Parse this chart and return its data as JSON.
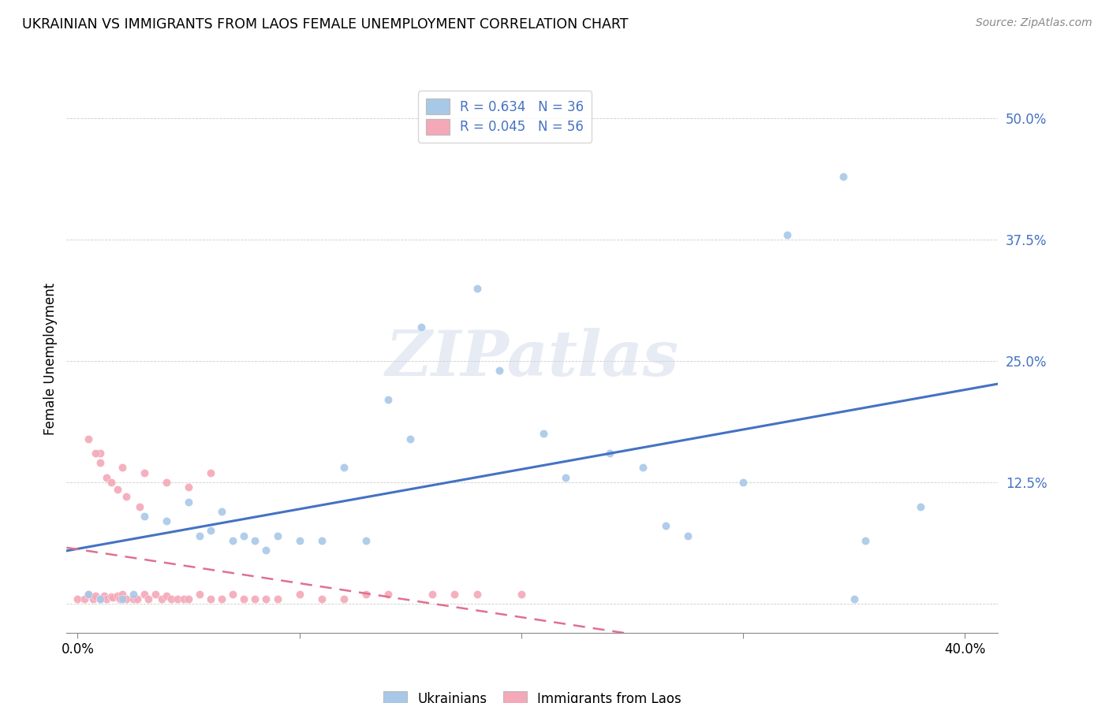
{
  "title": "UKRAINIAN VS IMMIGRANTS FROM LAOS FEMALE UNEMPLOYMENT CORRELATION CHART",
  "source": "Source: ZipAtlas.com",
  "ylabel": "Female Unemployment",
  "yticks": [
    0.0,
    0.125,
    0.25,
    0.375,
    0.5
  ],
  "ytick_labels": [
    "",
    "12.5%",
    "25.0%",
    "37.5%",
    "50.0%"
  ],
  "xticks": [
    0.0,
    0.1,
    0.2,
    0.3,
    0.4
  ],
  "xtick_labels": [
    "0.0%",
    "",
    "",
    "",
    "40.0%"
  ],
  "xlim": [
    -0.005,
    0.415
  ],
  "ylim": [
    -0.03,
    0.535
  ],
  "blue_scatter_color": "#A8C8E8",
  "pink_scatter_color": "#F4A8B8",
  "blue_line_color": "#4472C4",
  "pink_line_color": "#E07090",
  "tick_label_color": "#4472C4",
  "watermark_text": "ZIPatlas",
  "legend_label1": "R = 0.634   N = 36",
  "legend_label2": "R = 0.045   N = 56",
  "ukrainians_x": [
    0.005,
    0.01,
    0.02,
    0.025,
    0.03,
    0.04,
    0.05,
    0.055,
    0.065,
    0.07,
    0.075,
    0.08,
    0.09,
    0.1,
    0.11,
    0.12,
    0.13,
    0.14,
    0.155,
    0.18,
    0.19,
    0.21,
    0.22,
    0.24,
    0.255,
    0.265,
    0.275,
    0.3,
    0.32,
    0.345,
    0.355,
    0.38,
    0.35,
    0.06,
    0.085,
    0.15
  ],
  "ukrainians_y": [
    0.01,
    0.005,
    0.005,
    0.01,
    0.09,
    0.085,
    0.105,
    0.07,
    0.095,
    0.065,
    0.07,
    0.065,
    0.07,
    0.065,
    0.065,
    0.14,
    0.065,
    0.21,
    0.285,
    0.325,
    0.24,
    0.175,
    0.13,
    0.155,
    0.14,
    0.08,
    0.07,
    0.125,
    0.38,
    0.44,
    0.065,
    0.1,
    0.005,
    0.075,
    0.055,
    0.17
  ],
  "laos_x": [
    0.0,
    0.003,
    0.005,
    0.007,
    0.008,
    0.01,
    0.012,
    0.013,
    0.015,
    0.016,
    0.018,
    0.019,
    0.02,
    0.022,
    0.025,
    0.027,
    0.03,
    0.032,
    0.035,
    0.038,
    0.04,
    0.042,
    0.045,
    0.048,
    0.05,
    0.055,
    0.06,
    0.065,
    0.07,
    0.075,
    0.08,
    0.085,
    0.09,
    0.1,
    0.11,
    0.12,
    0.13,
    0.14,
    0.16,
    0.17,
    0.18,
    0.2,
    0.01,
    0.02,
    0.03,
    0.04,
    0.05,
    0.06,
    0.005,
    0.008,
    0.01,
    0.013,
    0.015,
    0.018,
    0.022,
    0.028
  ],
  "laos_y": [
    0.005,
    0.005,
    0.01,
    0.005,
    0.008,
    0.005,
    0.008,
    0.005,
    0.007,
    0.006,
    0.008,
    0.005,
    0.01,
    0.005,
    0.005,
    0.005,
    0.01,
    0.005,
    0.01,
    0.005,
    0.008,
    0.005,
    0.005,
    0.005,
    0.005,
    0.01,
    0.005,
    0.005,
    0.01,
    0.005,
    0.005,
    0.005,
    0.005,
    0.01,
    0.005,
    0.005,
    0.01,
    0.01,
    0.01,
    0.01,
    0.01,
    0.01,
    0.155,
    0.14,
    0.135,
    0.125,
    0.12,
    0.135,
    0.17,
    0.155,
    0.145,
    0.13,
    0.125,
    0.118,
    0.11,
    0.1
  ]
}
